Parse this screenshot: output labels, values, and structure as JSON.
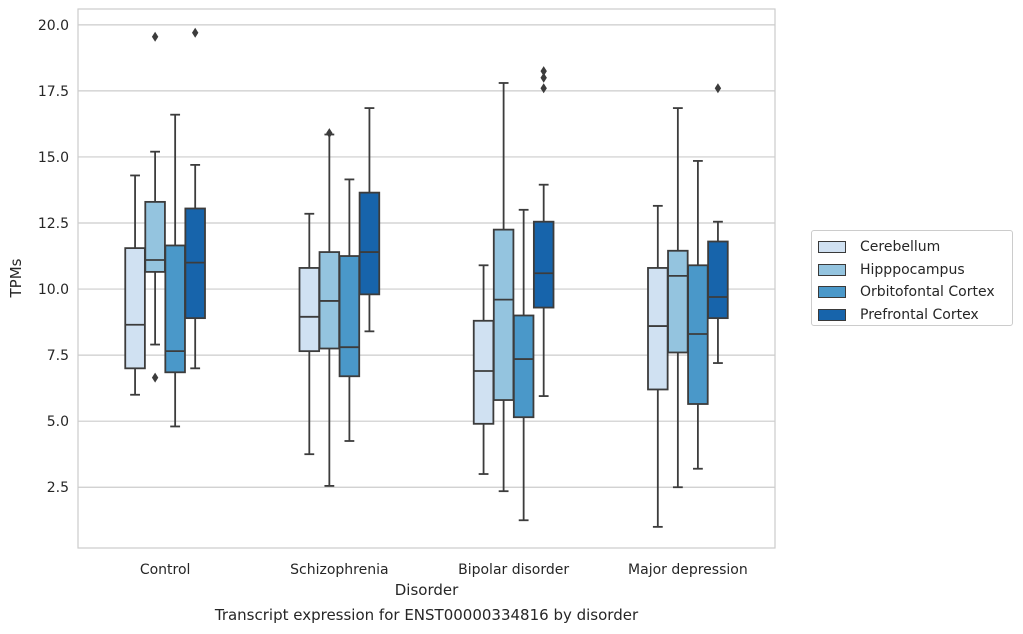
{
  "chart_data": {
    "type": "boxplot",
    "title": "",
    "xlabel": "Disorder",
    "ylabel": "TPMs",
    "caption": "Transcript expression for ENST00000334816 by disorder",
    "ylim": [
      0.2,
      20.6
    ],
    "yticks": [
      2.5,
      5.0,
      7.5,
      10.0,
      12.5,
      15.0,
      17.5,
      20.0
    ],
    "ytick_labels": [
      "2.5",
      "5.0",
      "7.5",
      "10.0",
      "12.5",
      "15.0",
      "17.5",
      "20.0"
    ],
    "grid": true,
    "legend_position": "right",
    "categories": [
      "Control",
      "Schizophrenia",
      "Bipolar disorder",
      "Major depression"
    ],
    "series": [
      {
        "name": "Cerebellum",
        "color": "#d0e1f2",
        "boxes": [
          {
            "whislo": 6.0,
            "q1": 7.0,
            "med": 8.65,
            "q3": 11.55,
            "whishi": 14.3,
            "fliers": []
          },
          {
            "whislo": 3.75,
            "q1": 7.65,
            "med": 8.95,
            "q3": 10.8,
            "whishi": 12.85,
            "fliers": []
          },
          {
            "whislo": 3.0,
            "q1": 4.9,
            "med": 6.9,
            "q3": 8.8,
            "whishi": 10.9,
            "fliers": []
          },
          {
            "whislo": 1.0,
            "q1": 6.2,
            "med": 8.6,
            "q3": 10.8,
            "whishi": 13.15,
            "fliers": []
          }
        ]
      },
      {
        "name": "Hipppocampus",
        "color": "#94c4df",
        "boxes": [
          {
            "whislo": 7.9,
            "q1": 10.65,
            "med": 11.1,
            "q3": 13.3,
            "whishi": 15.2,
            "fliers": [
              19.55,
              6.65
            ]
          },
          {
            "whislo": 2.55,
            "q1": 7.75,
            "med": 9.55,
            "q3": 11.4,
            "whishi": 15.85,
            "fliers": [
              15.9
            ]
          },
          {
            "whislo": 2.35,
            "q1": 5.8,
            "med": 9.6,
            "q3": 12.25,
            "whishi": 17.8,
            "fliers": []
          },
          {
            "whislo": 2.5,
            "q1": 7.6,
            "med": 10.5,
            "q3": 11.45,
            "whishi": 16.85,
            "fliers": []
          }
        ]
      },
      {
        "name": "Orbitofontal Cortex",
        "color": "#4a98c9",
        "boxes": [
          {
            "whislo": 4.8,
            "q1": 6.85,
            "med": 7.65,
            "q3": 11.65,
            "whishi": 16.6,
            "fliers": []
          },
          {
            "whislo": 4.25,
            "q1": 6.7,
            "med": 7.8,
            "q3": 11.25,
            "whishi": 14.15,
            "fliers": []
          },
          {
            "whislo": 1.25,
            "q1": 5.15,
            "med": 7.35,
            "q3": 9.0,
            "whishi": 13.0,
            "fliers": []
          },
          {
            "whislo": 3.2,
            "q1": 5.65,
            "med": 8.3,
            "q3": 10.9,
            "whishi": 14.85,
            "fliers": []
          }
        ]
      },
      {
        "name": "Prefrontal Cortex",
        "color": "#1764ab",
        "boxes": [
          {
            "whislo": 7.0,
            "q1": 8.9,
            "med": 11.0,
            "q3": 13.05,
            "whishi": 14.7,
            "fliers": [
              19.7
            ]
          },
          {
            "whislo": 8.4,
            "q1": 9.8,
            "med": 11.4,
            "q3": 13.65,
            "whishi": 16.85,
            "fliers": []
          },
          {
            "whislo": 5.95,
            "q1": 9.3,
            "med": 10.6,
            "q3": 12.55,
            "whishi": 13.95,
            "fliers": [
              18.0,
              18.25,
              17.6
            ]
          },
          {
            "whislo": 7.2,
            "q1": 8.9,
            "med": 9.7,
            "q3": 11.8,
            "whishi": 12.55,
            "fliers": [
              17.6
            ]
          }
        ]
      }
    ]
  }
}
